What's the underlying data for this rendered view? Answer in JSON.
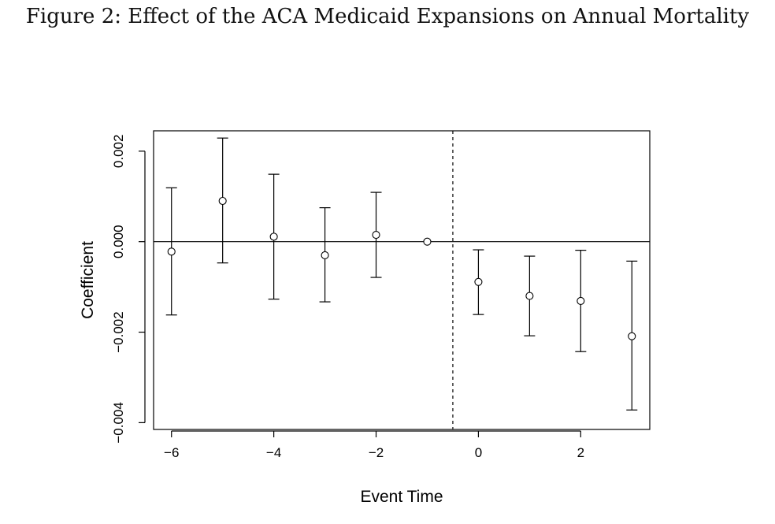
{
  "figure_caption": "Figure 2: Effect of the ACA Medicaid Expansions on Annual Mortality",
  "chart_data": {
    "type": "scatter",
    "subtype": "event-study coefficient plot with 95% confidence intervals",
    "title": "",
    "xlabel": "Event Time",
    "ylabel": "Coefficient",
    "xlim": [
      -6.35,
      3.35
    ],
    "ylim": [
      -0.00415,
      0.00245
    ],
    "xticks": [
      -6,
      -4,
      -2,
      0,
      2
    ],
    "xtick_labels": [
      "−6",
      "−4",
      "−2",
      "0",
      "2"
    ],
    "yticks": [
      -0.004,
      -0.002,
      0.0,
      0.002
    ],
    "ytick_labels": [
      "−0.004",
      "−0.002",
      "0.000",
      "0.002"
    ],
    "reference_hline": 0,
    "reference_vline_dashed": -0.5,
    "grid": false,
    "legend": "none",
    "points": [
      {
        "x": -6,
        "y": -0.00022,
        "lower": -0.00162,
        "upper": 0.00119
      },
      {
        "x": -5,
        "y": 0.0009,
        "lower": -0.00047,
        "upper": 0.00229
      },
      {
        "x": -4,
        "y": 0.00011,
        "lower": -0.00127,
        "upper": 0.00149
      },
      {
        "x": -3,
        "y": -0.0003,
        "lower": -0.00133,
        "upper": 0.00075
      },
      {
        "x": -2,
        "y": 0.00015,
        "lower": -0.00079,
        "upper": 0.00109
      },
      {
        "x": -1,
        "y": 0.0,
        "lower": null,
        "upper": null
      },
      {
        "x": 0,
        "y": -0.00089,
        "lower": -0.00161,
        "upper": -0.00018
      },
      {
        "x": 1,
        "y": -0.0012,
        "lower": -0.00208,
        "upper": -0.00032
      },
      {
        "x": 2,
        "y": -0.00131,
        "lower": -0.00243,
        "upper": -0.00019
      },
      {
        "x": 3,
        "y": -0.00209,
        "lower": -0.00372,
        "upper": -0.00043
      }
    ]
  }
}
